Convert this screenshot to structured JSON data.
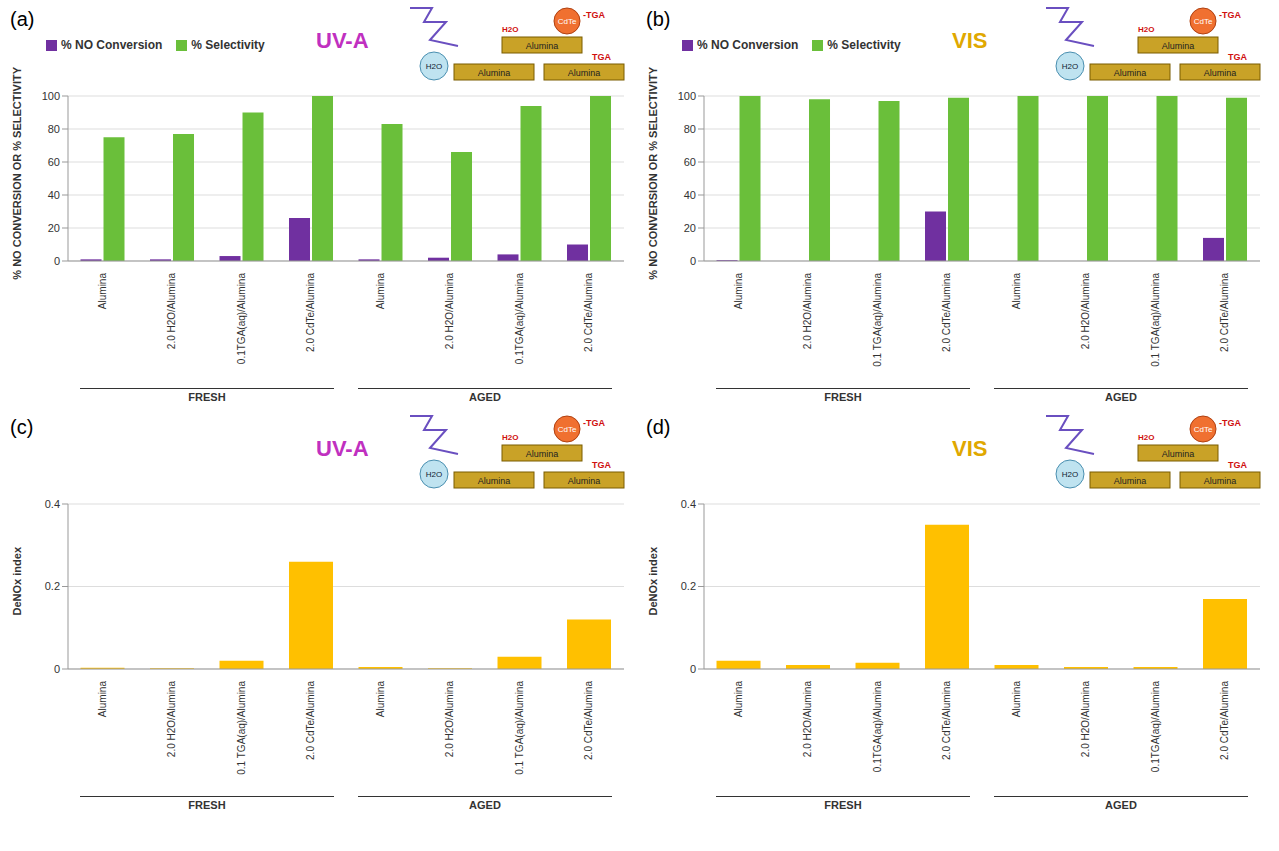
{
  "chart_data": [
    {
      "type": "bar",
      "panel": "(a)",
      "annotations": [
        "UV-A"
      ],
      "y_label": "% NO CONVERSION OR % SELECTIVITY",
      "categories": [
        "Alumina",
        "2.0 H2O/Alumina",
        "0.1TGA(aq)/Alumina",
        "2.0 CdTe/Alumina",
        "Alumina",
        "2.0 H2O/Alumina",
        "0.1TGA(aq)/Alumina",
        "2.0 CdTe/Alumina"
      ],
      "groups": [
        {
          "label": "FRESH",
          "start": 0,
          "end": 3
        },
        {
          "label": "AGED",
          "start": 4,
          "end": 7
        }
      ],
      "series": [
        {
          "name": "% NO Conversion",
          "color": "#7030a0",
          "values": [
            1,
            1,
            3,
            26,
            1,
            2,
            4,
            10
          ]
        },
        {
          "name": "% Selectivity",
          "color": "#6abf3a",
          "values": [
            75,
            77,
            90,
            100,
            83,
            66,
            94,
            100
          ]
        }
      ],
      "ylim": [
        0,
        100
      ],
      "yticks": [
        0,
        20,
        40,
        60,
        80,
        100
      ],
      "grid": true,
      "legend": "top-left"
    },
    {
      "type": "bar",
      "panel": "(b)",
      "annotations": [
        "VIS"
      ],
      "y_label": "% NO CONVERSION OR % SELECTIVITY",
      "categories": [
        "Alumina",
        "2.0 H2O/Alumina",
        "0.1 TGA(aq)/Alumina",
        "2.0 CdTe/Alumina",
        "Alumina",
        "2.0 H2O/Alumina",
        "0.1 TGA(aq)/Alumina",
        "2.0 CdTe/Alumina"
      ],
      "groups": [
        {
          "label": "FRESH",
          "start": 0,
          "end": 3
        },
        {
          "label": "AGED",
          "start": 4,
          "end": 7
        }
      ],
      "series": [
        {
          "name": "% NO Conversion",
          "color": "#7030a0",
          "values": [
            0.5,
            0,
            0,
            30,
            0,
            0,
            0,
            14
          ]
        },
        {
          "name": "% Selectivity",
          "color": "#6abf3a",
          "values": [
            100,
            98,
            97,
            99,
            100,
            100,
            100,
            99
          ]
        }
      ],
      "ylim": [
        0,
        100
      ],
      "yticks": [
        0,
        20,
        40,
        60,
        80,
        100
      ],
      "grid": true,
      "legend": "top-left"
    },
    {
      "type": "bar",
      "panel": "(c)",
      "annotations": [
        "UV-A"
      ],
      "y_label": "DeNOx index",
      "categories": [
        "Alumina",
        "2.0 H2O/Alumina",
        "0.1 TGA(aq)/Alumina",
        "2.0 CdTe/Alumina",
        "Alumina",
        "2.0 H2O/Alumina",
        "0.1 TGA(aq)/Alumina",
        "2.0 CdTe/Alumina"
      ],
      "groups": [
        {
          "label": "FRESH",
          "start": 0,
          "end": 3
        },
        {
          "label": "AGED",
          "start": 4,
          "end": 7
        }
      ],
      "values": [
        0.003,
        0.002,
        0.02,
        0.26,
        0.005,
        0.002,
        0.03,
        0.12
      ],
      "color": "#ffc000",
      "ylim": [
        0,
        0.4
      ],
      "yticks": [
        0,
        0.2,
        0.4
      ],
      "grid": true
    },
    {
      "type": "bar",
      "panel": "(d)",
      "annotations": [
        "VIS"
      ],
      "y_label": "DeNOx index",
      "categories": [
        "Alumina",
        "2.0 H2O/Alumina",
        "0.1TGA(aq)/Alumina",
        "2.0 CdTe/Alumina",
        "Alumina",
        "2.0 H2O/Alumina",
        "0.1TGA(aq)/Alumina",
        "2.0 CdTe/Alumina"
      ],
      "groups": [
        {
          "label": "FRESH",
          "start": 0,
          "end": 3
        },
        {
          "label": "AGED",
          "start": 4,
          "end": 7
        }
      ],
      "values": [
        0.02,
        0.01,
        0.015,
        0.35,
        0.01,
        0.005,
        0.005,
        0.17
      ],
      "color": "#ffc000",
      "ylim": [
        0,
        0.4
      ],
      "yticks": [
        0,
        0.2,
        0.4
      ],
      "grid": true
    }
  ],
  "inset_labels": {
    "water": "H2O",
    "particle": "CdTe",
    "ligand": "-TGA",
    "support": "Alumina",
    "adsorbed": "TGA"
  }
}
